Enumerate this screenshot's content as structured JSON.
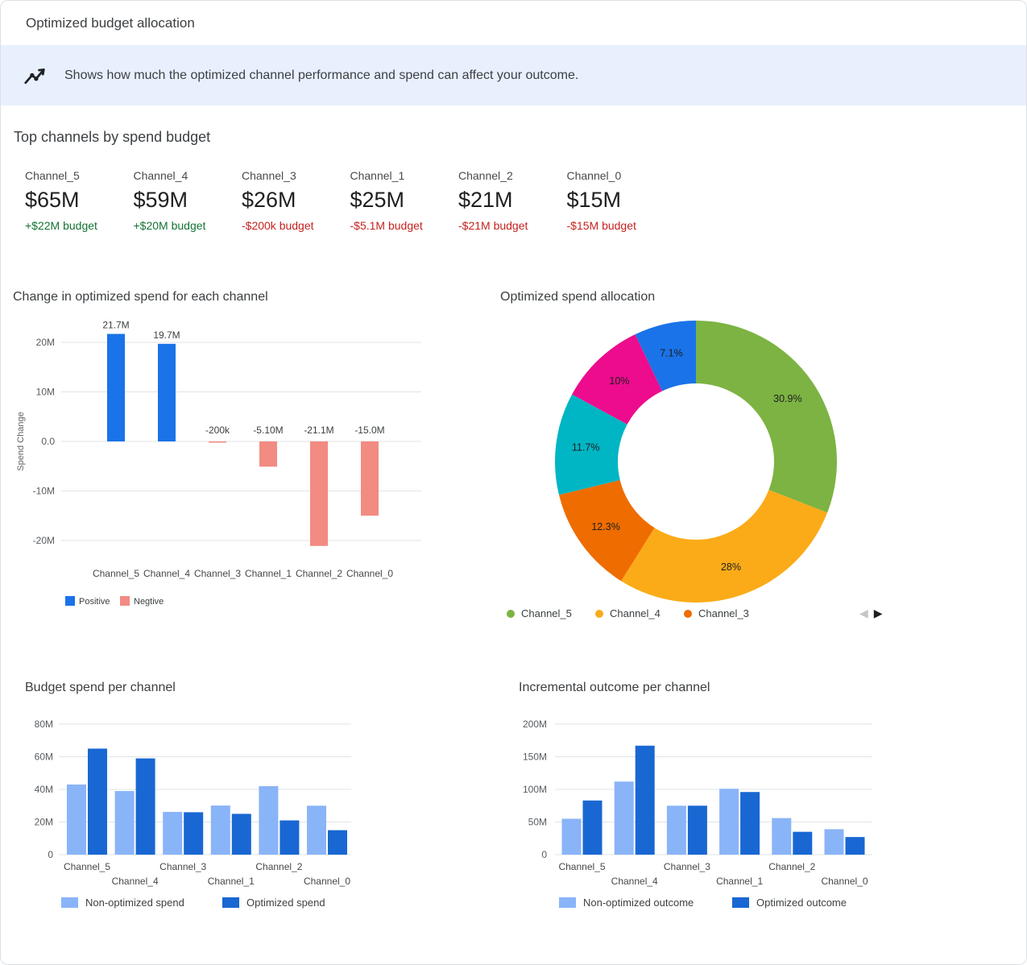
{
  "window": {
    "title": "Optimized budget allocation"
  },
  "banner": {
    "icon": "insights-icon",
    "text": "Shows how much the optimized channel performance and spend can affect your outcome."
  },
  "top_channels": {
    "heading": "Top channels by spend budget",
    "cards": [
      {
        "name": "Channel_5",
        "value": "$65M",
        "delta": "+$22M budget",
        "trend": "positive"
      },
      {
        "name": "Channel_4",
        "value": "$59M",
        "delta": "+$20M budget",
        "trend": "positive"
      },
      {
        "name": "Channel_3",
        "value": "$26M",
        "delta": "-$200k budget",
        "trend": "negative"
      },
      {
        "name": "Channel_1",
        "value": "$25M",
        "delta": "-$5.1M budget",
        "trend": "negative"
      },
      {
        "name": "Channel_2",
        "value": "$21M",
        "delta": "-$21M budget",
        "trend": "negative"
      },
      {
        "name": "Channel_0",
        "value": "$15M",
        "delta": "-$15M budget",
        "trend": "negative"
      }
    ]
  },
  "colors": {
    "banner_bg": "#e8f0fe",
    "positive_text": "#137333",
    "negative_text": "#c5221f",
    "positive_bar": "#1a73e8",
    "negative_bar": "#f28b82",
    "non_optimized_bar": "#8ab4f8",
    "optimized_bar": "#1967d2"
  },
  "chart_data": [
    {
      "type": "bar",
      "title": "Change in optimized spend for each channel",
      "ylabel": "Spend Change",
      "categories": [
        "Channel_5",
        "Channel_4",
        "Channel_3",
        "Channel_1",
        "Channel_2",
        "Channel_0"
      ],
      "values_millions": [
        21.7,
        19.7,
        -0.2,
        -5.1,
        -21.1,
        -15.0
      ],
      "bar_labels": [
        "21.7M",
        "19.7M",
        "-200k",
        "-5.10M",
        "-21.1M",
        "-15.0M"
      ],
      "yticks_millions": [
        20,
        10,
        0,
        -10,
        -20
      ],
      "ytick_labels": [
        "20M",
        "10M",
        "0.0",
        "-10M",
        "-20M"
      ],
      "ylim": [
        -25,
        25
      ],
      "grid": true,
      "legend_position": "bottom",
      "legend": [
        {
          "label": "Positive",
          "color": "#1a73e8"
        },
        {
          "label": "Negtive",
          "color": "#f28b82"
        }
      ]
    },
    {
      "type": "pie",
      "title": "Optimized spend allocation",
      "values_percent": [
        30.9,
        28,
        12.3,
        11.7,
        10,
        7.1
      ],
      "slice_labels": [
        "30.9%",
        "28%",
        "12.3%",
        "11.7%",
        "10%",
        "7.1%"
      ],
      "slice_colors": [
        "#7cb342",
        "#fbab18",
        "#ef6c00",
        "#00b5c4",
        "#ec0c8d",
        "#1a73e8"
      ],
      "donut": true,
      "legend_position": "bottom",
      "legend_visible": [
        {
          "label": "Channel_5",
          "color": "#7cb342"
        },
        {
          "label": "Channel_4",
          "color": "#fbab18"
        },
        {
          "label": "Channel_3",
          "color": "#ef6c00"
        }
      ],
      "pagination": {
        "prev_glyph": "◀",
        "next_glyph": "▶"
      }
    },
    {
      "type": "bar",
      "title": "Budget spend per channel",
      "categories": [
        "Channel_5",
        "Channel_4",
        "Channel_3",
        "Channel_1",
        "Channel_2",
        "Channel_0"
      ],
      "series": [
        {
          "name": "Non-optimized spend",
          "color": "#8ab4f8",
          "values_millions": [
            43,
            39,
            26.2,
            30.1,
            42,
            30
          ]
        },
        {
          "name": "Optimized spend",
          "color": "#1967d2",
          "values_millions": [
            65,
            59,
            26,
            25,
            21,
            15
          ]
        }
      ],
      "yticks_millions": [
        0,
        20,
        40,
        60,
        80
      ],
      "ytick_labels": [
        "0",
        "20M",
        "40M",
        "60M",
        "80M"
      ],
      "ylim": [
        0,
        80
      ],
      "grid": true,
      "legend_position": "bottom"
    },
    {
      "type": "bar",
      "title": "Incremental outcome per channel",
      "categories": [
        "Channel_5",
        "Channel_4",
        "Channel_3",
        "Channel_1",
        "Channel_2",
        "Channel_0"
      ],
      "series": [
        {
          "name": "Non-optimized outcome",
          "color": "#8ab4f8",
          "values_millions": [
            55,
            112,
            75,
            101,
            56,
            39
          ]
        },
        {
          "name": "Optimized outcome",
          "color": "#1967d2",
          "values_millions": [
            83,
            167,
            75,
            96,
            35,
            27
          ]
        }
      ],
      "yticks_millions": [
        0,
        50,
        100,
        150,
        200
      ],
      "ytick_labels": [
        "0",
        "50M",
        "100M",
        "150M",
        "200M"
      ],
      "ylim": [
        0,
        200
      ],
      "grid": true,
      "legend_position": "bottom"
    }
  ]
}
